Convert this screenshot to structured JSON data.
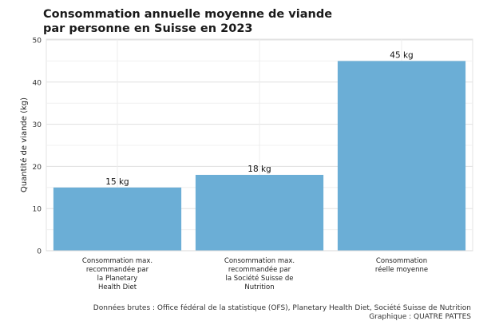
{
  "title": {
    "line1": "Consommation annuelle moyenne de viande",
    "line2": "par personne en Suisse en 2023"
  },
  "chart_data": {
    "type": "bar",
    "categories": [
      [
        "Consommation max.",
        "recommandée par",
        "la Planetary",
        "Health Diet"
      ],
      [
        "Consommation max.",
        "recommandée par",
        "la Société Suisse de",
        "Nutrition"
      ],
      [
        "Consommation",
        "réelle moyenne"
      ]
    ],
    "values": [
      15,
      18,
      45
    ],
    "data_labels": [
      "15 kg",
      "18 kg",
      "45 kg"
    ],
    "ylabel": "Quantité de viande (kg)",
    "ylim": [
      0,
      50
    ],
    "yticks": [
      0,
      10,
      20,
      30,
      40,
      50
    ],
    "grid": true,
    "bar_color": "#6baed6"
  },
  "footer": {
    "source": "Données brutes : Office fédéral de la statistique (OFS), Planetary Health Diet, Société Suisse de Nutrition",
    "credit": "Graphique : QUATRE PATTES"
  }
}
